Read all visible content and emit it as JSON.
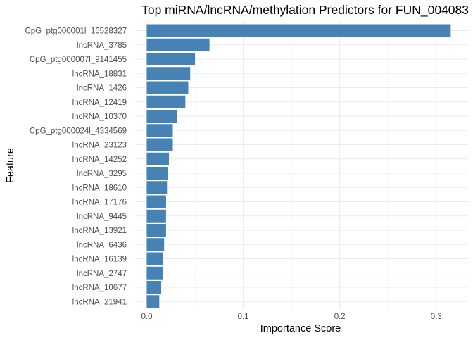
{
  "chart_data": {
    "type": "bar",
    "orientation": "horizontal",
    "title": "Top miRNA/lncRNA/methylation Predictors for FUN_004083",
    "xlabel": "Importance Score",
    "ylabel": "Feature",
    "xlim": [
      0,
      0.32
    ],
    "x_ticks": [
      0.0,
      0.1,
      0.2,
      0.3
    ],
    "x_tick_labels": [
      "0.0",
      "0.1",
      "0.2",
      "0.3"
    ],
    "grid": true,
    "bar_color": "#4682B4",
    "categories": [
      "CpG_ptg000001l_16528327",
      "lncRNA_3785",
      "CpG_ptg000007l_9141455",
      "lncRNA_18831",
      "lncRNA_1426",
      "lncRNA_12419",
      "lncRNA_10370",
      "CpG_ptg000024l_4334569",
      "lncRNA_23123",
      "lncRNA_14252",
      "lncRNA_3295",
      "lncRNA_18610",
      "lncRNA_17176",
      "lncRNA_9445",
      "lncRNA_13921",
      "lncRNA_6436",
      "lncRNA_16139",
      "lncRNA_2747",
      "lncRNA_10677",
      "lncRNA_21941"
    ],
    "values": [
      0.315,
      0.065,
      0.05,
      0.045,
      0.043,
      0.04,
      0.031,
      0.027,
      0.027,
      0.023,
      0.022,
      0.021,
      0.02,
      0.02,
      0.02,
      0.018,
      0.017,
      0.017,
      0.015,
      0.013
    ]
  }
}
